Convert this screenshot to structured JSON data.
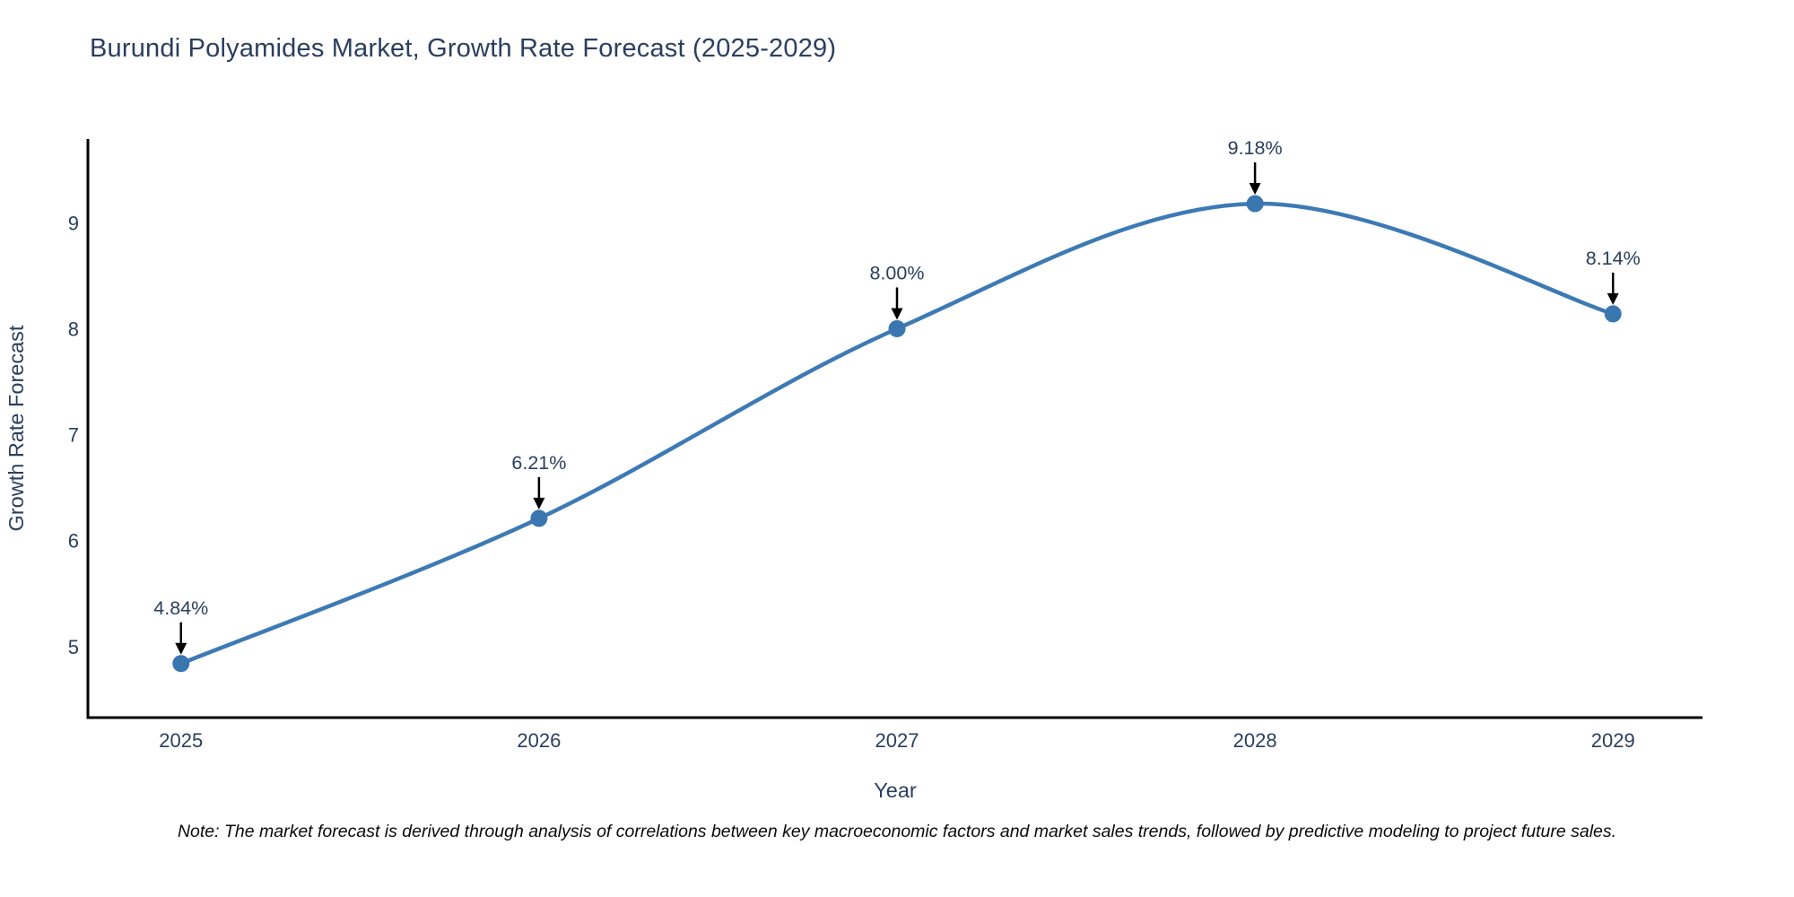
{
  "title": "Burundi Polyamides Market, Growth Rate Forecast (2025-2029)",
  "note": "Note: The market forecast is derived through analysis of correlations between key macroeconomic factors and market sales trends, followed by predictive modeling to project future sales.",
  "chart_data": {
    "type": "line",
    "title": "Burundi Polyamides Market, Growth Rate Forecast (2025-2029)",
    "xlabel": "Year",
    "ylabel": "Growth Rate Forecast",
    "categories": [
      "2025",
      "2026",
      "2027",
      "2028",
      "2029"
    ],
    "x": [
      2025,
      2026,
      2027,
      2028,
      2029
    ],
    "series": [
      {
        "name": "Growth Rate Forecast",
        "values": [
          4.84,
          6.21,
          8.0,
          9.18,
          8.14
        ],
        "point_labels": [
          "4.84%",
          "6.21%",
          "8.00%",
          "9.18%",
          "8.14%"
        ]
      }
    ],
    "yticks": [
      5,
      6,
      7,
      8,
      9
    ],
    "ylim": [
      4.33,
      9.79
    ],
    "xlim": [
      2024.74,
      2029.25
    ],
    "grid": false,
    "legend": "none",
    "line_shape": "spline",
    "annotations_style": "value label with black down-arrow to each marker",
    "colors": {
      "line": "#3d7ab5",
      "marker": "#3a76b0",
      "axis": "#000000",
      "tick_text": "#2a3f5f",
      "annotation_text": "#2a3f5f",
      "arrow": "#000000",
      "title_text": "#2a3f5f",
      "background": "#ffffff"
    }
  }
}
